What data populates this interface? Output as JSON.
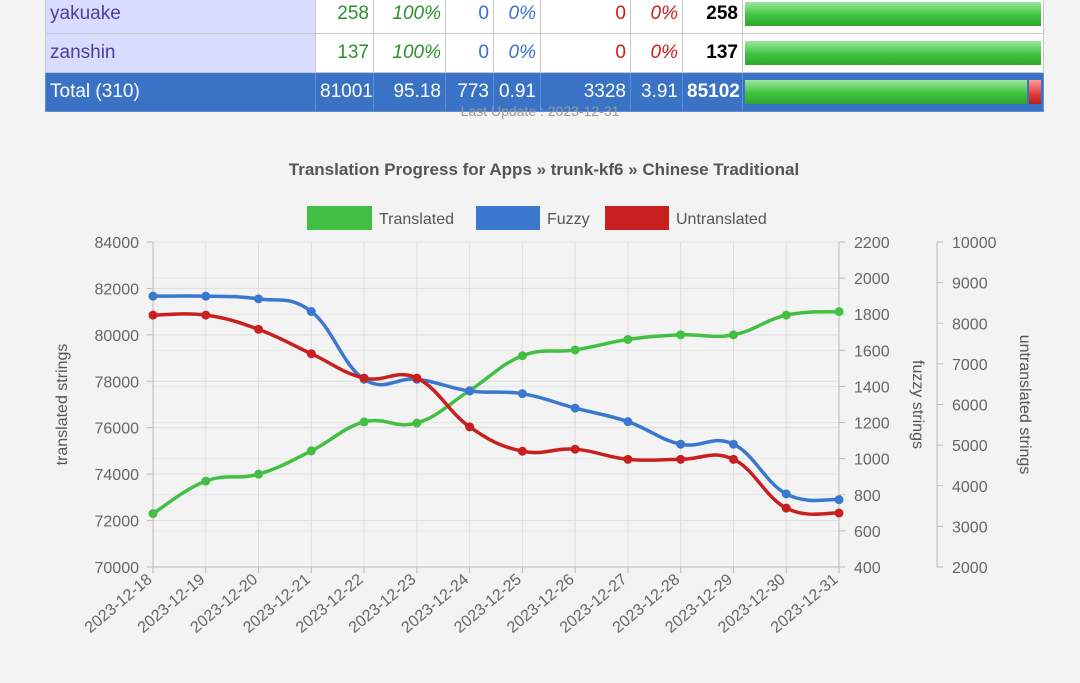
{
  "table": {
    "rows": [
      {
        "name": "yakuake",
        "translated": "258",
        "translated_pct": "100%",
        "fuzzy": "0",
        "fuzzy_pct": "0%",
        "untranslated": "0",
        "untranslated_pct": "0%",
        "total": "258",
        "progress": 1.0
      },
      {
        "name": "zanshin",
        "translated": "137",
        "translated_pct": "100%",
        "fuzzy": "0",
        "fuzzy_pct": "0%",
        "untranslated": "0",
        "untranslated_pct": "0%",
        "total": "137",
        "progress": 1.0
      }
    ],
    "total_row": {
      "name": "Total (310)",
      "translated": "81001",
      "translated_pct": "95.18",
      "fuzzy": "773",
      "fuzzy_pct": "0.91",
      "untranslated": "3328",
      "untranslated_pct": "3.91",
      "total": "85102",
      "progress_translated": 0.9518,
      "progress_fuzzy": 0.0091,
      "progress_untranslated": 0.0391
    }
  },
  "last_update": "Last Update : 2023-12-31",
  "colors": {
    "translated": "#43c043",
    "fuzzy": "#3a78cf",
    "untranslated": "#c81f1f"
  },
  "chart_data": {
    "type": "line",
    "title": "Translation Progress for Apps » trunk-kf6 » Chinese Traditional",
    "categories": [
      "2023-12-18",
      "2023-12-19",
      "2023-12-20",
      "2023-12-21",
      "2023-12-22",
      "2023-12-23",
      "2023-12-24",
      "2023-12-25",
      "2023-12-26",
      "2023-12-27",
      "2023-12-28",
      "2023-12-29",
      "2023-12-30",
      "2023-12-31"
    ],
    "series": [
      {
        "name": "Translated",
        "axis": "translated",
        "values": [
          72300,
          73700,
          74000,
          75000,
          76250,
          76200,
          77600,
          79100,
          79350,
          79800,
          80000,
          80000,
          80850,
          81001
        ]
      },
      {
        "name": "Fuzzy",
        "axis": "fuzzy",
        "values": [
          1900,
          1900,
          1885,
          1815,
          1440,
          1440,
          1375,
          1360,
          1280,
          1205,
          1080,
          1080,
          805,
          773
        ]
      },
      {
        "name": "Untranslated",
        "axis": "untranslated",
        "values": [
          8200,
          8200,
          7850,
          7250,
          6650,
          6650,
          5450,
          4850,
          4900,
          4650,
          4650,
          4650,
          3450,
          3328
        ]
      }
    ],
    "axes": {
      "translated": {
        "label": "translated strings",
        "min": 70000,
        "max": 84000,
        "ticks": [
          "70000",
          "72000",
          "74000",
          "76000",
          "78000",
          "80000",
          "82000",
          "84000"
        ]
      },
      "fuzzy": {
        "label": "fuzzy strings",
        "min": 400,
        "max": 2200,
        "ticks": [
          "400",
          "600",
          "800",
          "1000",
          "1200",
          "1400",
          "1600",
          "1800",
          "2000",
          "2200"
        ]
      },
      "untranslated": {
        "label": "untranslated strings",
        "min": 2000,
        "max": 10000,
        "ticks": [
          "2000",
          "3000",
          "4000",
          "5000",
          "6000",
          "7000",
          "8000",
          "9000",
          "10000"
        ]
      }
    },
    "legend_position": "top",
    "grid": true
  }
}
